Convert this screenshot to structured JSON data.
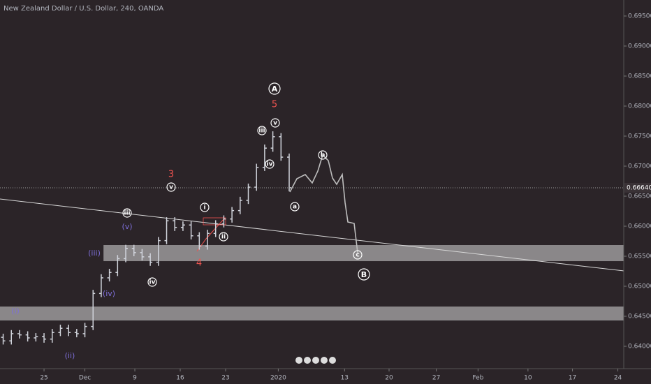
{
  "chart_data": {
    "type": "ohlc",
    "title": "New Zealand Dollar / U.S. Dollar, 240, OANDA",
    "color": "#d1d4dc",
    "x": [
      -4.5,
      -3.6,
      -2.7,
      -1.8,
      -0.9,
      0,
      0.9,
      1.8,
      2.7,
      3.6,
      4.5,
      5.4,
      6.3,
      7.2,
      8.1,
      9,
      9.9,
      10.8,
      11.7,
      12.6,
      13.5,
      14.4,
      15.3,
      16.2,
      17.1,
      18,
      18.9,
      19.8,
      20.7,
      21.6,
      22.5,
      23.4,
      24.3,
      25.2,
      26.1,
      27
    ],
    "open": [
      0.6415,
      0.6409,
      0.6421,
      0.6419,
      0.6414,
      0.6416,
      0.6412,
      0.6423,
      0.643,
      0.6423,
      0.6421,
      0.6433,
      0.6488,
      0.6514,
      0.6523,
      0.6546,
      0.6563,
      0.6556,
      0.6549,
      0.654,
      0.6576,
      0.6609,
      0.6598,
      0.6602,
      0.6584,
      0.6567,
      0.6588,
      0.6604,
      0.6612,
      0.6626,
      0.6643,
      0.6665,
      0.6698,
      0.673,
      0.6749,
      0.6715
    ],
    "high": [
      0.6421,
      0.6427,
      0.6427,
      0.6425,
      0.6422,
      0.6422,
      0.6429,
      0.6436,
      0.6436,
      0.6429,
      0.6439,
      0.6494,
      0.652,
      0.6529,
      0.6552,
      0.6569,
      0.6569,
      0.6562,
      0.6555,
      0.6582,
      0.6615,
      0.6615,
      0.6608,
      0.6608,
      0.659,
      0.6594,
      0.661,
      0.6618,
      0.6632,
      0.6649,
      0.6671,
      0.6704,
      0.6736,
      0.6758,
      0.6755,
      0.6721
    ],
    "low": [
      0.6403,
      0.6403,
      0.6413,
      0.6408,
      0.6408,
      0.6406,
      0.6406,
      0.6417,
      0.6417,
      0.6415,
      0.6415,
      0.6427,
      0.6482,
      0.6508,
      0.6517,
      0.654,
      0.655,
      0.6543,
      0.6534,
      0.6534,
      0.657,
      0.6592,
      0.6592,
      0.6578,
      0.6561,
      0.6561,
      0.6582,
      0.6598,
      0.6606,
      0.662,
      0.6637,
      0.6659,
      0.6692,
      0.6724,
      0.6709,
      0.6658
    ],
    "close": [
      0.6409,
      0.6421,
      0.6419,
      0.6414,
      0.6416,
      0.6412,
      0.6423,
      0.643,
      0.6423,
      0.6421,
      0.6433,
      0.6488,
      0.6514,
      0.6523,
      0.6546,
      0.6563,
      0.6556,
      0.6549,
      0.654,
      0.6576,
      0.6609,
      0.6598,
      0.6602,
      0.6584,
      0.6567,
      0.6588,
      0.6604,
      0.6612,
      0.6626,
      0.6643,
      0.6665,
      0.6698,
      0.673,
      0.6749,
      0.6715,
      0.6664
    ],
    "xlim": [
      -4.85,
      63.85
    ],
    "ylim": [
      0.63628,
      0.69767
    ],
    "xticks": [
      {
        "value": 0,
        "label": "25"
      },
      {
        "value": 4.5,
        "label": "Dec"
      },
      {
        "value": 10,
        "label": "9"
      },
      {
        "value": 15,
        "label": "16"
      },
      {
        "value": 20,
        "label": "23"
      },
      {
        "value": 25.8,
        "label": "2020"
      },
      {
        "value": 33.1,
        "label": "13"
      },
      {
        "value": 38,
        "label": "20"
      },
      {
        "value": 43.2,
        "label": "27"
      },
      {
        "value": 47.8,
        "label": "Feb"
      },
      {
        "value": 53.3,
        "label": "10"
      },
      {
        "value": 58.2,
        "label": "17"
      },
      {
        "value": 63.2,
        "label": "24"
      }
    ],
    "yticks": [
      {
        "value": 0.64,
        "label": "0.64000"
      },
      {
        "value": 0.645,
        "label": "0.64500"
      },
      {
        "value": 0.65,
        "label": "0.65000"
      },
      {
        "value": 0.655,
        "label": "0.65500"
      },
      {
        "value": 0.66,
        "label": "0.66000"
      },
      {
        "value": 0.665,
        "label": "0.66500"
      },
      {
        "value": 0.67,
        "label": "0.67000"
      },
      {
        "value": 0.675,
        "label": "0.67500"
      },
      {
        "value": 0.68,
        "label": "0.68000"
      },
      {
        "value": 0.685,
        "label": "0.68500"
      },
      {
        "value": 0.69,
        "label": "0.69000"
      },
      {
        "value": 0.695,
        "label": "0.69500"
      }
    ],
    "last_price": {
      "value": 0.6664,
      "label": "0.66640"
    },
    "zones": [
      {
        "low": 0.65418,
        "high": 0.65686,
        "from": 6.55
      },
      {
        "low": 0.6443,
        "high": 0.64662,
        "from": -4.85
      }
    ]
  },
  "annotations": [
    "A",
    "5",
    "v",
    "iii",
    "iv",
    "b",
    "a",
    "c",
    "B",
    "3",
    "v",
    "i",
    "ii",
    "4",
    "iii",
    "(v)",
    "(iii)",
    "iv",
    "(iv)",
    "(i)",
    "(ii)"
  ]
}
